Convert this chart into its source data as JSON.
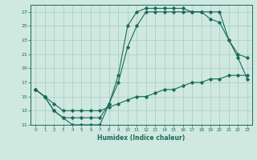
{
  "xlabel": "Humidex (Indice chaleur)",
  "bg_color": "#cfe8e0",
  "grid_color": "#a8ccbf",
  "line_color": "#1a6b5a",
  "xlim": [
    -0.5,
    23.5
  ],
  "ylim": [
    11,
    28
  ],
  "xticks": [
    0,
    1,
    2,
    3,
    4,
    5,
    6,
    7,
    8,
    9,
    10,
    11,
    12,
    13,
    14,
    15,
    16,
    17,
    18,
    19,
    20,
    21,
    22,
    23
  ],
  "yticks": [
    11,
    13,
    15,
    17,
    19,
    21,
    23,
    25,
    27
  ],
  "line1_x": [
    0,
    1,
    2,
    3,
    4,
    5,
    6,
    7,
    8,
    9,
    10,
    11,
    12,
    13,
    14,
    15,
    16,
    17,
    18,
    19,
    20,
    21,
    22,
    23
  ],
  "line1_y": [
    16,
    15,
    13,
    12,
    11,
    11,
    11,
    11,
    14,
    18,
    25,
    27,
    27.5,
    27.5,
    27.5,
    27.5,
    27.5,
    27,
    27,
    27,
    27,
    23,
    20.5,
    17.5
  ],
  "line2_x": [
    0,
    1,
    2,
    3,
    4,
    5,
    6,
    7,
    8,
    9,
    10,
    11,
    12,
    13,
    14,
    15,
    16,
    17,
    18,
    19,
    20,
    21,
    22,
    23
  ],
  "line2_y": [
    16,
    15,
    13,
    12,
    12,
    12,
    12,
    12,
    14,
    17,
    22,
    25,
    27,
    27,
    27,
    27,
    27,
    27,
    27,
    26,
    25.5,
    23,
    21,
    20.5
  ],
  "line3_x": [
    0,
    1,
    2,
    3,
    4,
    5,
    6,
    7,
    8,
    9,
    10,
    11,
    12,
    13,
    14,
    15,
    16,
    17,
    18,
    19,
    20,
    21,
    22,
    23
  ],
  "line3_y": [
    16,
    15,
    14,
    13,
    13,
    13,
    13,
    13,
    13.5,
    14,
    14.5,
    15,
    15,
    15.5,
    16,
    16,
    16.5,
    17,
    17,
    17.5,
    17.5,
    18,
    18,
    18
  ]
}
